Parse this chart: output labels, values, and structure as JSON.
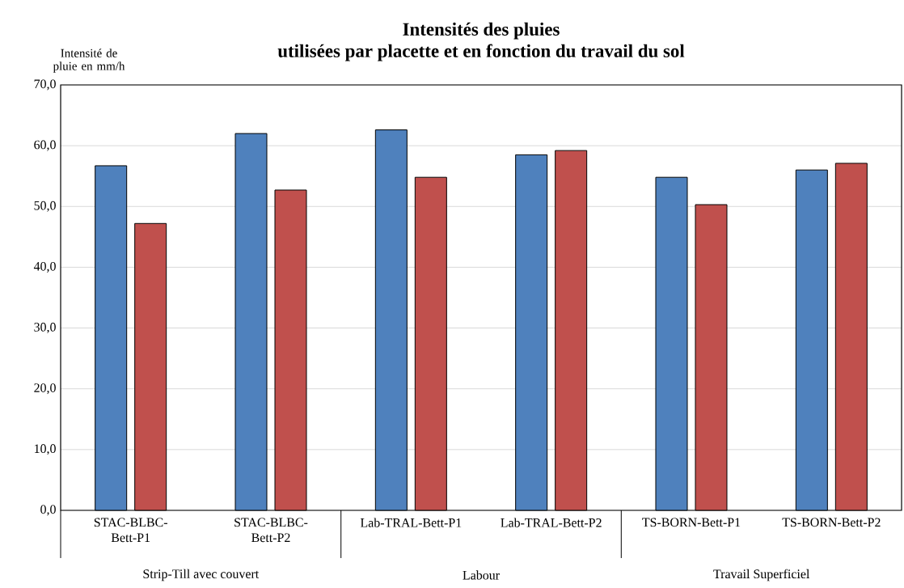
{
  "chart_data": {
    "type": "bar",
    "title": "Intensités des pluies",
    "subtitle": "utilisées par placette et en fonction du travail du sol",
    "ylabel": "Intensité de pluie en mm/h",
    "categories": [
      "STAC-BLBC-Bett-P1",
      "STAC-BLBC-Bett-P2",
      "Lab-TRAL-Bett-P1",
      "Lab-TRAL-Bett-P2",
      "TS-BORN-Bett-P1",
      "TS-BORN-Bett-P2"
    ],
    "series": [
      {
        "color": "#4f81bd",
        "values": [
          56.7,
          62.0,
          62.6,
          58.5,
          54.8,
          56.0
        ]
      },
      {
        "color": "#c0504d",
        "values": [
          47.2,
          52.7,
          54.8,
          59.2,
          50.3,
          57.1
        ]
      }
    ],
    "ylim": [
      0,
      70
    ],
    "yticks": [
      {
        "value": 0,
        "label": "0,0"
      },
      {
        "value": 10,
        "label": "10,0"
      },
      {
        "value": 20,
        "label": "20,0"
      },
      {
        "value": 30,
        "label": "30,0"
      },
      {
        "value": 40,
        "label": "40,0"
      },
      {
        "value": 50,
        "label": "50,0"
      },
      {
        "value": 60,
        "label": "60,0"
      },
      {
        "value": 70,
        "label": "70,0"
      }
    ],
    "grid": "y",
    "annotations": [
      "Strip-Till avec couvert",
      "Labour",
      "Travail Superficiel"
    ]
  }
}
